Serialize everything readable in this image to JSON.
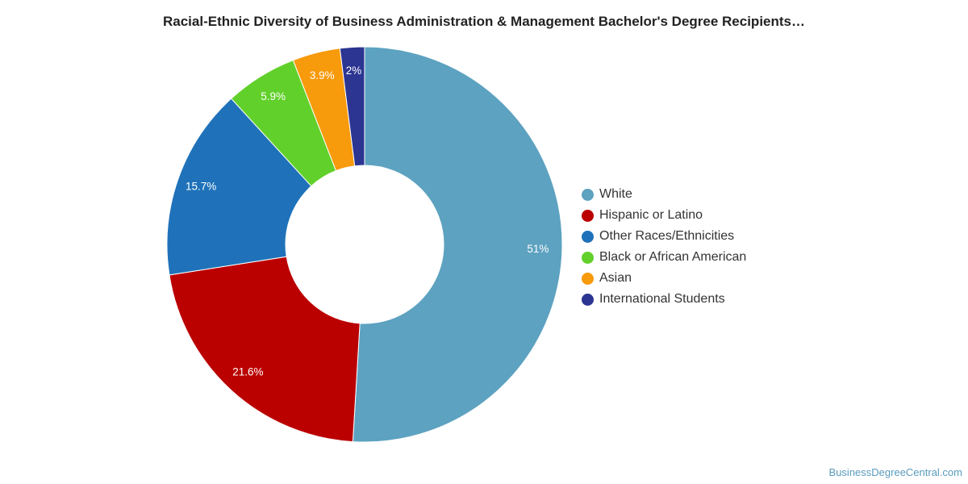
{
  "chart_data": {
    "type": "pie",
    "donut": true,
    "title": "Racial-Ethnic Diversity of Business Administration & Management Bachelor's Degree Recipients…",
    "legend_position": "right",
    "slices": [
      {
        "name": "White",
        "value": 51,
        "label": "51%",
        "color": "#5da2c0"
      },
      {
        "name": "Hispanic or Latino",
        "value": 21.6,
        "label": "21.6%",
        "color": "#bb0000"
      },
      {
        "name": "Other Races/Ethnicities",
        "value": 15.7,
        "label": "15.7%",
        "color": "#1f72b9"
      },
      {
        "name": "Black or African American",
        "value": 5.9,
        "label": "5.9%",
        "color": "#62d02a"
      },
      {
        "name": "Asian",
        "value": 3.9,
        "label": "3.9%",
        "color": "#f79a0b"
      },
      {
        "name": "International Students",
        "value": 2,
        "label": "2%",
        "color": "#2c3591"
      }
    ]
  },
  "source": "BusinessDegreeCentral.com"
}
